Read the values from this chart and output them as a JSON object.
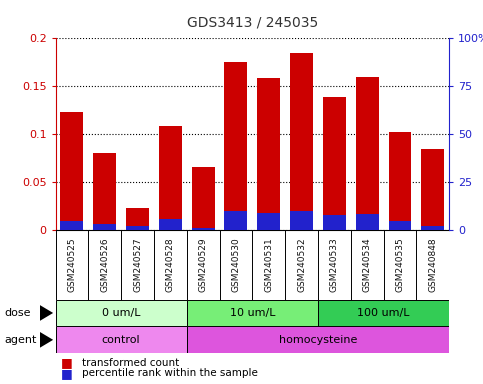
{
  "title": "GDS3413 / 245035",
  "samples": [
    "GSM240525",
    "GSM240526",
    "GSM240527",
    "GSM240528",
    "GSM240529",
    "GSM240530",
    "GSM240531",
    "GSM240532",
    "GSM240533",
    "GSM240534",
    "GSM240535",
    "GSM240848"
  ],
  "transformed_count": [
    0.123,
    0.081,
    0.023,
    0.109,
    0.066,
    0.175,
    0.159,
    0.185,
    0.139,
    0.16,
    0.103,
    0.085
  ],
  "percentile_rank": [
    0.01,
    0.007,
    0.005,
    0.012,
    0.003,
    0.02,
    0.018,
    0.02,
    0.016,
    0.017,
    0.01,
    0.005
  ],
  "bar_color_red": "#cc0000",
  "bar_color_blue": "#2222cc",
  "ylim_left": [
    0,
    0.2
  ],
  "ylim_right": [
    0,
    100
  ],
  "yticks_left": [
    0,
    0.05,
    0.1,
    0.15,
    0.2
  ],
  "ytick_labels_left": [
    "0",
    "0.05",
    "0.1",
    "0.15",
    "0.2"
  ],
  "yticks_right": [
    0,
    25,
    50,
    75,
    100
  ],
  "ytick_labels_right": [
    "0",
    "25",
    "50",
    "75",
    "100%"
  ],
  "dose_groups": [
    {
      "label": "0 um/L",
      "start": 0,
      "end": 4,
      "color": "#ccffcc"
    },
    {
      "label": "10 um/L",
      "start": 4,
      "end": 8,
      "color": "#77ee77"
    },
    {
      "label": "100 um/L",
      "start": 8,
      "end": 12,
      "color": "#33cc55"
    }
  ],
  "agent_groups": [
    {
      "label": "control",
      "start": 0,
      "end": 4,
      "color": "#ee88ee"
    },
    {
      "label": "homocysteine",
      "start": 4,
      "end": 12,
      "color": "#dd55dd"
    }
  ],
  "dose_label": "dose",
  "agent_label": "agent",
  "legend_red": "transformed count",
  "legend_blue": "percentile rank within the sample",
  "background_color": "#ffffff",
  "xlabel_color": "#111111",
  "title_color": "#333333",
  "left_axis_color": "#cc0000",
  "right_axis_color": "#2222cc",
  "xticklabel_bg": "#c8c8c8",
  "grid_color": "#000000"
}
